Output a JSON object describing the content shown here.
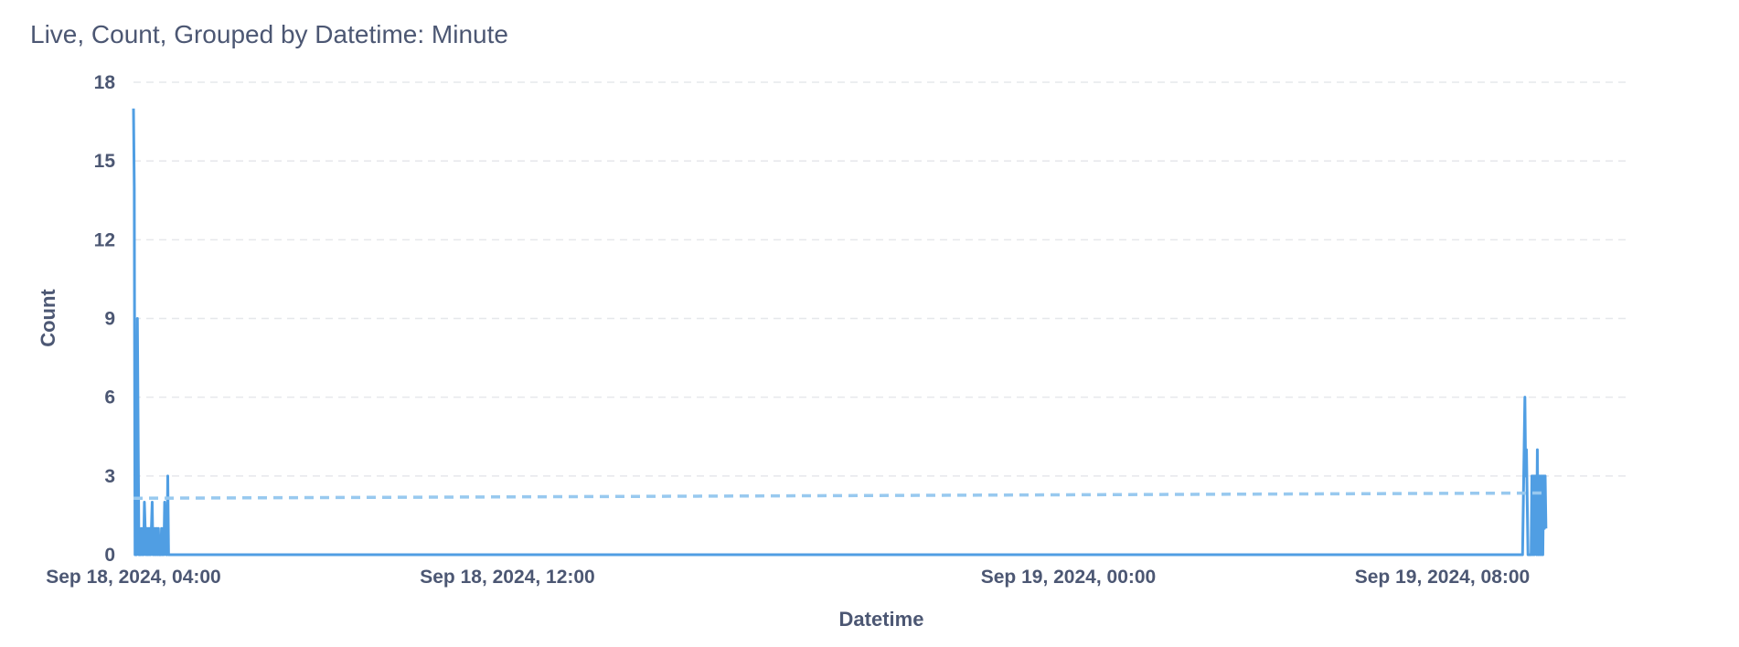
{
  "chart_data": {
    "type": "line",
    "title": "Live, Count, Grouped by Datetime: Minute",
    "xlabel": "Datetime",
    "ylabel": "Count",
    "xlim": [
      "2024-09-18T04:00",
      "2024-09-19T12:00"
    ],
    "ylim": [
      0,
      18
    ],
    "y_ticks": [
      0,
      3,
      6,
      9,
      12,
      15,
      18
    ],
    "x_ticks": [
      {
        "t": "2024-09-18T04:00",
        "label": "Sep 18, 2024, 04:00"
      },
      {
        "t": "2024-09-18T12:00",
        "label": "Sep 18, 2024, 12:00"
      },
      {
        "t": "2024-09-19T00:00",
        "label": "Sep 19, 2024, 00:00"
      },
      {
        "t": "2024-09-19T08:00",
        "label": "Sep 19, 2024, 08:00"
      }
    ],
    "grid": "horizontal-dashed",
    "series": [
      {
        "color": "#509ee3",
        "points": [
          [
            "2024-09-18T04:00",
            17
          ],
          [
            "2024-09-18T04:01",
            14
          ],
          [
            "2024-09-18T04:02",
            0
          ],
          [
            "2024-09-18T04:04",
            0
          ],
          [
            "2024-09-18T04:05",
            9
          ],
          [
            "2024-09-18T04:07",
            0
          ],
          [
            "2024-09-18T04:09",
            0
          ],
          [
            "2024-09-18T04:10",
            1
          ],
          [
            "2024-09-18T04:11",
            0
          ],
          [
            "2024-09-18T04:12",
            1
          ],
          [
            "2024-09-18T04:13",
            0
          ],
          [
            "2024-09-18T04:14",
            2
          ],
          [
            "2024-09-18T04:15",
            1
          ],
          [
            "2024-09-18T04:16",
            0
          ],
          [
            "2024-09-18T04:17",
            1
          ],
          [
            "2024-09-18T04:18",
            0
          ],
          [
            "2024-09-18T04:19",
            1
          ],
          [
            "2024-09-18T04:20",
            0
          ],
          [
            "2024-09-18T04:21",
            1
          ],
          [
            "2024-09-18T04:22",
            0
          ],
          [
            "2024-09-18T04:23",
            1
          ],
          [
            "2024-09-18T04:24",
            2
          ],
          [
            "2024-09-18T04:25",
            0
          ],
          [
            "2024-09-18T04:26",
            1
          ],
          [
            "2024-09-18T04:27",
            0
          ],
          [
            "2024-09-18T04:28",
            1
          ],
          [
            "2024-09-18T04:29",
            0
          ],
          [
            "2024-09-18T04:30",
            1
          ],
          [
            "2024-09-18T04:31",
            0
          ],
          [
            "2024-09-18T04:32",
            1
          ],
          [
            "2024-09-18T04:33",
            0
          ],
          [
            "2024-09-18T04:35",
            0
          ],
          [
            "2024-09-18T04:36",
            1
          ],
          [
            "2024-09-18T04:37",
            0
          ],
          [
            "2024-09-18T04:38",
            1
          ],
          [
            "2024-09-18T04:39",
            0
          ],
          [
            "2024-09-18T04:40",
            2
          ],
          [
            "2024-09-18T04:41",
            1
          ],
          [
            "2024-09-18T04:42",
            0
          ],
          [
            "2024-09-18T04:43",
            0
          ],
          [
            "2024-09-18T04:44",
            3
          ],
          [
            "2024-09-18T04:45",
            0
          ],
          [
            "2024-09-19T09:43",
            0
          ],
          [
            "2024-09-19T09:44",
            2
          ],
          [
            "2024-09-19T09:45",
            4
          ],
          [
            "2024-09-19T09:46",
            6
          ],
          [
            "2024-09-19T09:47",
            3
          ],
          [
            "2024-09-19T09:48",
            4
          ],
          [
            "2024-09-19T09:49",
            2
          ],
          [
            "2024-09-19T09:50",
            0
          ],
          [
            "2024-09-19T09:54",
            0
          ],
          [
            "2024-09-19T09:55",
            3
          ],
          [
            "2024-09-19T09:56",
            0
          ],
          [
            "2024-09-19T09:57",
            3
          ],
          [
            "2024-09-19T09:58",
            0
          ],
          [
            "2024-09-19T09:59",
            3
          ],
          [
            "2024-09-19T10:00",
            2
          ],
          [
            "2024-09-19T10:01",
            0
          ],
          [
            "2024-09-19T10:02",
            4
          ],
          [
            "2024-09-19T10:03",
            0
          ],
          [
            "2024-09-19T10:04",
            3
          ],
          [
            "2024-09-19T10:05",
            0
          ],
          [
            "2024-09-19T10:06",
            3
          ],
          [
            "2024-09-19T10:07",
            0
          ],
          [
            "2024-09-19T10:08",
            3
          ],
          [
            "2024-09-19T10:09",
            0
          ],
          [
            "2024-09-19T10:10",
            3
          ],
          [
            "2024-09-19T10:11",
            1
          ],
          [
            "2024-09-19T10:12",
            3
          ],
          [
            "2024-09-19T10:13",
            1
          ]
        ]
      }
    ],
    "trend_line": {
      "color": "#98c9ef",
      "style": "dashed",
      "points": [
        [
          "2024-09-18T04:00",
          2.15
        ],
        [
          "2024-09-19T10:13",
          2.35
        ]
      ]
    }
  }
}
